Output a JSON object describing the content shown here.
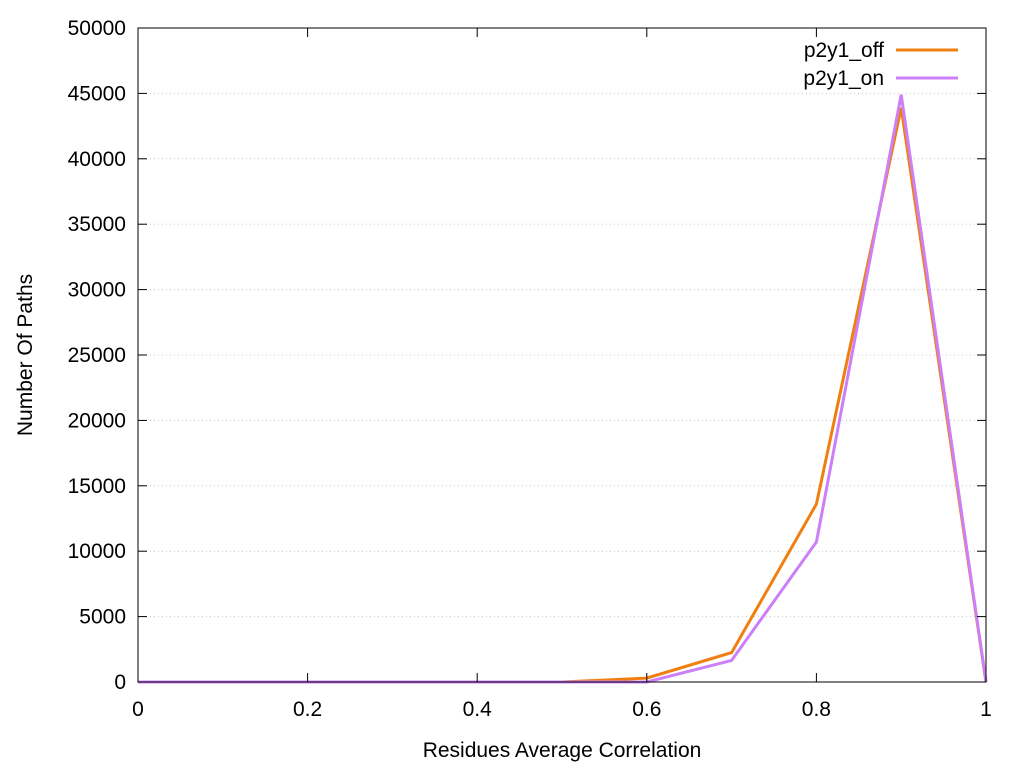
{
  "chart_data": {
    "type": "line",
    "xlabel": "Residues Average Correlation",
    "ylabel": "Number Of Paths",
    "xlim": [
      0,
      1
    ],
    "ylim": [
      0,
      50000
    ],
    "x_ticks": [
      "0",
      "0.2",
      "0.4",
      "0.6",
      "0.8",
      "1"
    ],
    "y_ticks": [
      "0",
      "5000",
      "10000",
      "15000",
      "20000",
      "25000",
      "30000",
      "35000",
      "40000",
      "45000",
      "50000"
    ],
    "grid": "horizontal dotted",
    "legend_position": "top-right",
    "series": [
      {
        "name": "p2y1_off",
        "color": "#f07f10",
        "x": [
          0,
          0.1,
          0.2,
          0.3,
          0.4,
          0.5,
          0.6,
          0.7,
          0.8,
          0.9,
          1.0
        ],
        "y": [
          0,
          0,
          0,
          0,
          0,
          0,
          300,
          2250,
          13600,
          43900,
          0
        ]
      },
      {
        "name": "p2y1_on",
        "color": "#cc7ff7",
        "x": [
          0,
          0.1,
          0.2,
          0.3,
          0.4,
          0.5,
          0.6,
          0.7,
          0.8,
          0.9,
          1.0
        ],
        "y": [
          0,
          0,
          0,
          0,
          0,
          0,
          0,
          1650,
          10700,
          44900,
          0
        ]
      }
    ]
  }
}
